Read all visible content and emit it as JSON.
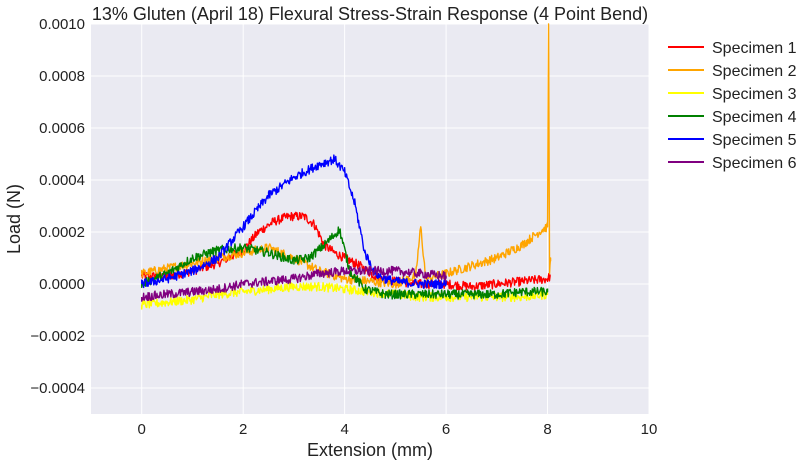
{
  "chart_data": {
    "type": "line",
    "title": "13% Gluten (April 18) Flexural Stress-Strain Response (4 Point Bend)",
    "xlabel": "Extension (mm)",
    "ylabel": "Load (N)",
    "xlim": [
      -1,
      10
    ],
    "ylim": [
      -0.0005,
      0.001
    ],
    "xticks": [
      0,
      2,
      4,
      6,
      8,
      10
    ],
    "xtick_labels": [
      "0",
      "2",
      "4",
      "6",
      "8",
      "10"
    ],
    "yticks": [
      -0.0004,
      -0.0002,
      0,
      0.0002,
      0.0004,
      0.0006,
      0.0008,
      0.001
    ],
    "ytick_labels": [
      "−0.0004",
      "−0.0002",
      "0.0000",
      "0.0002",
      "0.0004",
      "0.0006",
      "0.0008",
      "0.0010"
    ],
    "grid": true,
    "legend": "outside-top-right",
    "series": [
      {
        "name": "Specimen 1",
        "color": "#ff0000",
        "x": [
          0,
          0.5,
          1.0,
          1.5,
          2.0,
          2.3,
          2.6,
          2.9,
          3.2,
          3.4,
          3.6,
          3.8,
          4.0,
          4.3,
          4.6,
          5.0,
          5.5,
          6.0,
          6.5,
          7.0,
          7.5,
          8.0,
          8.05
        ],
        "y": [
          3e-05,
          3e-05,
          5e-05,
          8e-05,
          0.00013,
          0.0002,
          0.00024,
          0.00026,
          0.00026,
          0.00023,
          0.00015,
          0.00012,
          0.0001,
          7e-05,
          3e-05,
          1e-05,
          0.0,
          0.0,
          -1e-05,
          0.0,
          1e-05,
          2e-05,
          3e-05
        ]
      },
      {
        "name": "Specimen 2",
        "color": "#ffa500",
        "x": [
          0,
          0.5,
          1.0,
          1.5,
          2.0,
          2.5,
          3.0,
          3.5,
          4.0,
          4.5,
          5.0,
          5.4,
          5.5,
          5.6,
          6.0,
          6.5,
          7.0,
          7.5,
          7.9,
          8.0,
          8.02,
          8.04,
          8.06
        ],
        "y": [
          4e-05,
          6e-05,
          8e-05,
          0.0001,
          0.00012,
          0.00014,
          0.0001,
          5e-05,
          2e-05,
          1e-05,
          0.0,
          3e-05,
          0.00022,
          2e-05,
          4e-05,
          7e-05,
          0.0001,
          0.00015,
          0.00021,
          0.00022,
          0.001,
          4e-05,
          0.0001
        ]
      },
      {
        "name": "Specimen 3",
        "color": "#ffff00",
        "x": [
          0,
          0.5,
          1.0,
          1.5,
          2.0,
          2.5,
          3.0,
          3.5,
          4.0,
          4.5,
          5.0,
          5.5,
          6.0,
          6.5,
          7.0,
          7.5,
          8.0
        ],
        "y": [
          -8e-05,
          -7e-05,
          -6e-05,
          -4e-05,
          -3e-05,
          -2e-05,
          -1e-05,
          -1e-05,
          -2e-05,
          -3e-05,
          -4e-05,
          -5e-05,
          -5e-05,
          -5e-05,
          -5e-05,
          -5e-05,
          -4e-05
        ]
      },
      {
        "name": "Specimen 4",
        "color": "#008000",
        "x": [
          0,
          0.5,
          1.0,
          1.5,
          2.0,
          2.5,
          3.0,
          3.3,
          3.6,
          3.9,
          4.1,
          4.4,
          4.8,
          5.5,
          6.0,
          6.5,
          7.0,
          7.5,
          8.0
        ],
        "y": [
          0.0,
          4e-05,
          0.0001,
          0.00013,
          0.00014,
          0.00012,
          9e-05,
          0.0001,
          0.00015,
          0.00021,
          5e-05,
          -2e-05,
          -4e-05,
          -4e-05,
          -4e-05,
          -4e-05,
          -4e-05,
          -3e-05,
          -3e-05
        ]
      },
      {
        "name": "Specimen 5",
        "color": "#0000ff",
        "x": [
          0,
          0.5,
          1.0,
          1.5,
          2.0,
          2.5,
          3.0,
          3.5,
          3.8,
          4.0,
          4.2,
          4.4,
          4.6,
          4.8,
          5.0,
          5.5,
          6.0
        ],
        "y": [
          0.0,
          2e-05,
          5e-05,
          0.0001,
          0.00022,
          0.00034,
          0.00041,
          0.00046,
          0.00048,
          0.00043,
          0.00031,
          0.00012,
          4e-05,
          2e-05,
          1e-05,
          0.0,
          0.0
        ]
      },
      {
        "name": "Specimen 6",
        "color": "#800080",
        "x": [
          0,
          0.5,
          1.0,
          1.5,
          2.0,
          2.5,
          3.0,
          3.5,
          4.0,
          4.5,
          5.0,
          5.5,
          6.0
        ],
        "y": [
          -5e-05,
          -4e-05,
          -3e-05,
          -2e-05,
          0.0,
          1e-05,
          2e-05,
          4e-05,
          5e-05,
          5e-05,
          5e-05,
          4e-05,
          3e-05
        ]
      }
    ]
  }
}
